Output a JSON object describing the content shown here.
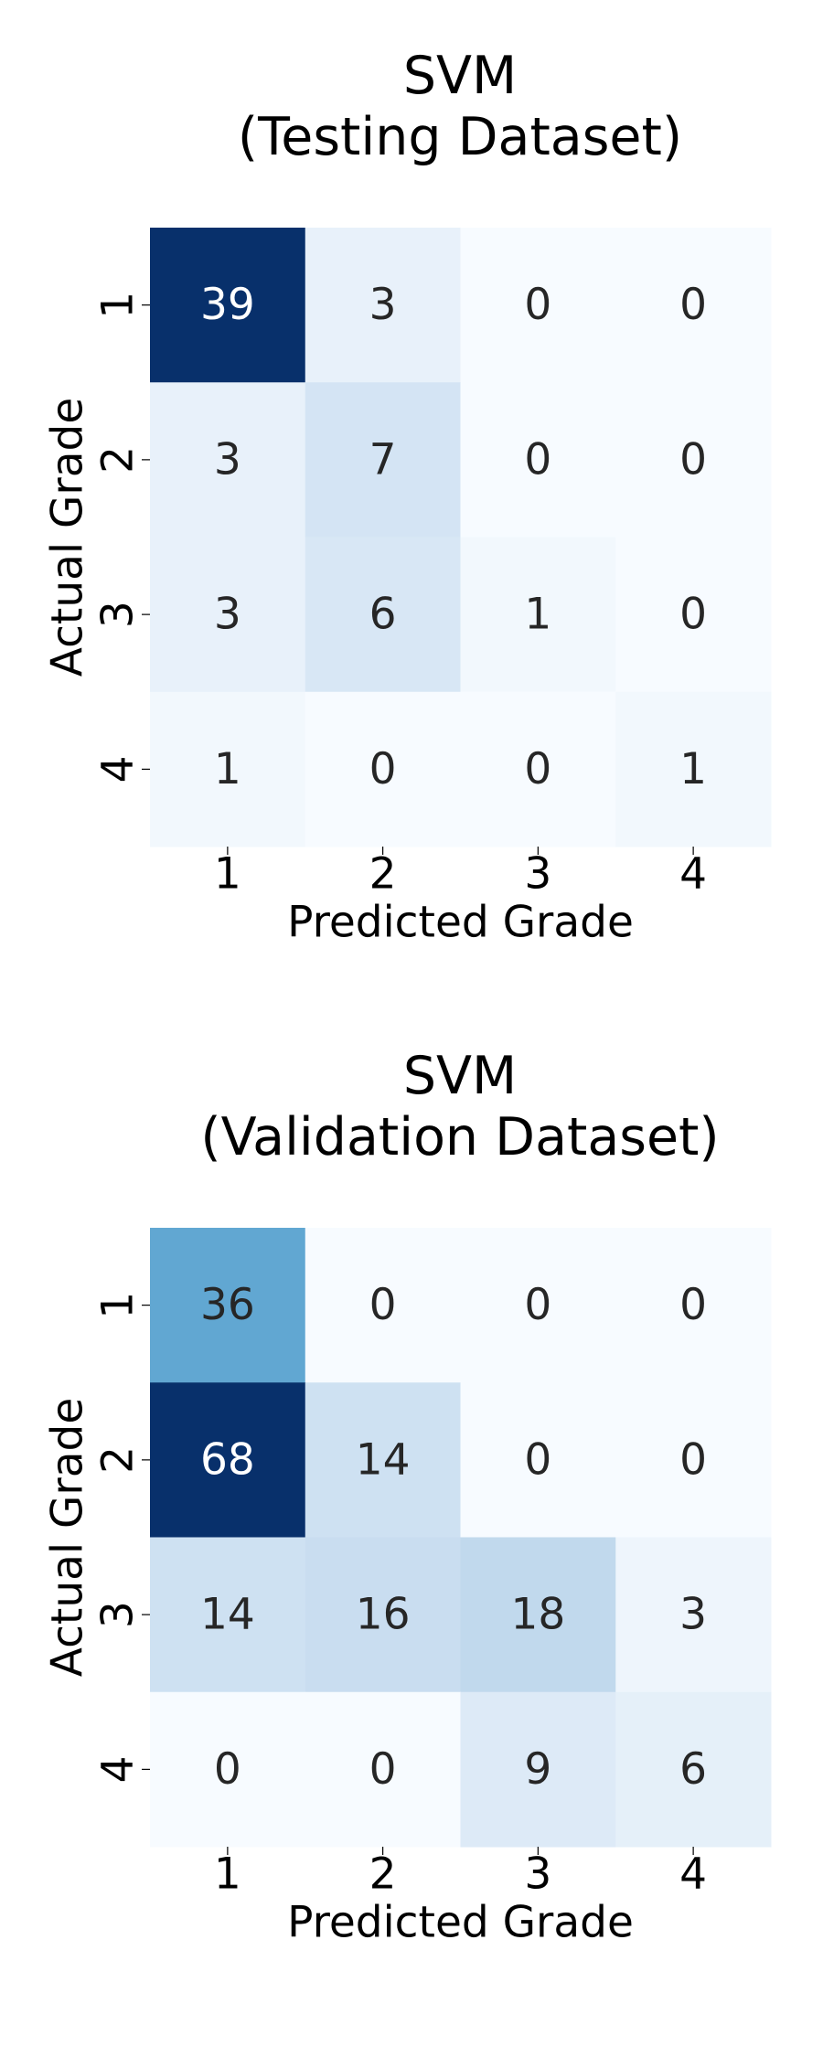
{
  "chart_data": [
    {
      "type": "heatmap",
      "title": "SVM\n(Testing Dataset)",
      "xlabel": "Predicted Grade",
      "ylabel": "Actual Grade",
      "x_categories": [
        "1",
        "2",
        "3",
        "4"
      ],
      "y_categories": [
        "1",
        "2",
        "3",
        "4"
      ],
      "cmap": "Blues",
      "values": [
        [
          39,
          3,
          0,
          0
        ],
        [
          3,
          7,
          0,
          0
        ],
        [
          3,
          6,
          1,
          0
        ],
        [
          1,
          0,
          0,
          1
        ]
      ]
    },
    {
      "type": "heatmap",
      "title": "SVM\n(Validation Dataset)",
      "xlabel": "Predicted Grade",
      "ylabel": "Actual Grade",
      "x_categories": [
        "1",
        "2",
        "3",
        "4"
      ],
      "y_categories": [
        "1",
        "2",
        "3",
        "4"
      ],
      "cmap": "Blues",
      "values": [
        [
          36,
          0,
          0,
          0
        ],
        [
          68,
          14,
          0,
          0
        ],
        [
          14,
          16,
          18,
          3
        ],
        [
          0,
          0,
          9,
          6
        ]
      ]
    }
  ]
}
